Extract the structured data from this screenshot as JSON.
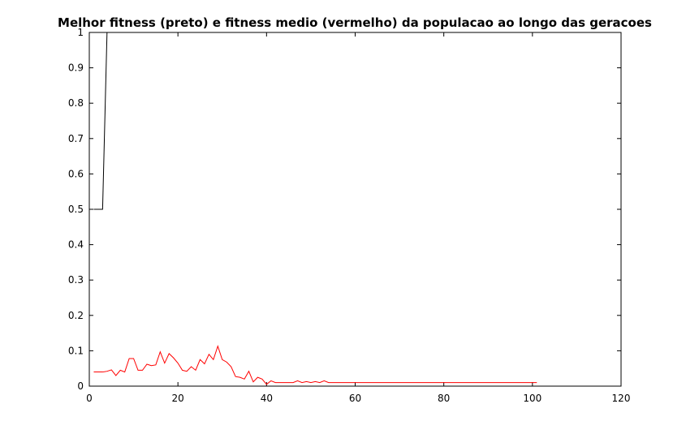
{
  "chart_data": {
    "type": "line",
    "title": "Melhor fitness (preto) e fitness medio (vermelho) da populacao ao longo das geracoes",
    "xlabel": "",
    "ylabel": "",
    "xlim": [
      0,
      120
    ],
    "ylim": [
      0,
      1
    ],
    "xticks": [
      "0",
      "20",
      "40",
      "60",
      "80",
      "100",
      "120"
    ],
    "yticks": [
      "0",
      "0.1",
      "0.2",
      "0.3",
      "0.4",
      "0.5",
      "0.6",
      "0.7",
      "0.8",
      "0.9",
      "1"
    ],
    "grid": false,
    "legend": "none",
    "series": [
      {
        "color": "#000000",
        "x": [
          1,
          2,
          3,
          4,
          5,
          101
        ],
        "y": [
          0.5,
          0.5,
          0.5,
          1,
          1,
          1
        ]
      },
      {
        "color": "#ff0000",
        "x": [
          1,
          2,
          3,
          4,
          5,
          6,
          7,
          8,
          9,
          10,
          11,
          12,
          13,
          14,
          15,
          16,
          17,
          18,
          19,
          20,
          21,
          22,
          23,
          24,
          25,
          26,
          27,
          28,
          29,
          30,
          31,
          32,
          33,
          34,
          35,
          36,
          37,
          38,
          39,
          40,
          41,
          42,
          43,
          44,
          45,
          46,
          47,
          48,
          49,
          50,
          51,
          52,
          53,
          54,
          55,
          56,
          57,
          58,
          59,
          60,
          61,
          62,
          63,
          64,
          65,
          66,
          67,
          68,
          69,
          70,
          71,
          72,
          73,
          74,
          75,
          76,
          77,
          78,
          79,
          80,
          81,
          82,
          83,
          84,
          85,
          86,
          87,
          88,
          89,
          90,
          91,
          92,
          93,
          94,
          95,
          96,
          97,
          98,
          99,
          100,
          101
        ],
        "y": [
          0.04,
          0.04,
          0.04,
          0.042,
          0.046,
          0.03,
          0.045,
          0.04,
          0.078,
          0.078,
          0.045,
          0.045,
          0.062,
          0.058,
          0.06,
          0.097,
          0.065,
          0.092,
          0.08,
          0.065,
          0.045,
          0.042,
          0.055,
          0.045,
          0.075,
          0.063,
          0.09,
          0.075,
          0.113,
          0.075,
          0.068,
          0.055,
          0.027,
          0.025,
          0.02,
          0.042,
          0.012,
          0.025,
          0.02,
          0.005,
          0.015,
          0.01,
          0.01,
          0.01,
          0.01,
          0.01,
          0.015,
          0.01,
          0.013,
          0.01,
          0.013,
          0.01,
          0.015,
          0.01,
          0.01,
          0.01,
          0.01,
          0.01,
          0.01,
          0.01,
          0.01,
          0.01,
          0.01,
          0.01,
          0.01,
          0.01,
          0.01,
          0.01,
          0.01,
          0.01,
          0.01,
          0.01,
          0.01,
          0.01,
          0.01,
          0.01,
          0.01,
          0.01,
          0.01,
          0.01,
          0.01,
          0.01,
          0.01,
          0.01,
          0.01,
          0.01,
          0.01,
          0.01,
          0.01,
          0.01,
          0.01,
          0.01,
          0.01,
          0.01,
          0.01,
          0.01,
          0.01,
          0.01,
          0.01,
          0.01,
          0.01
        ]
      }
    ]
  }
}
